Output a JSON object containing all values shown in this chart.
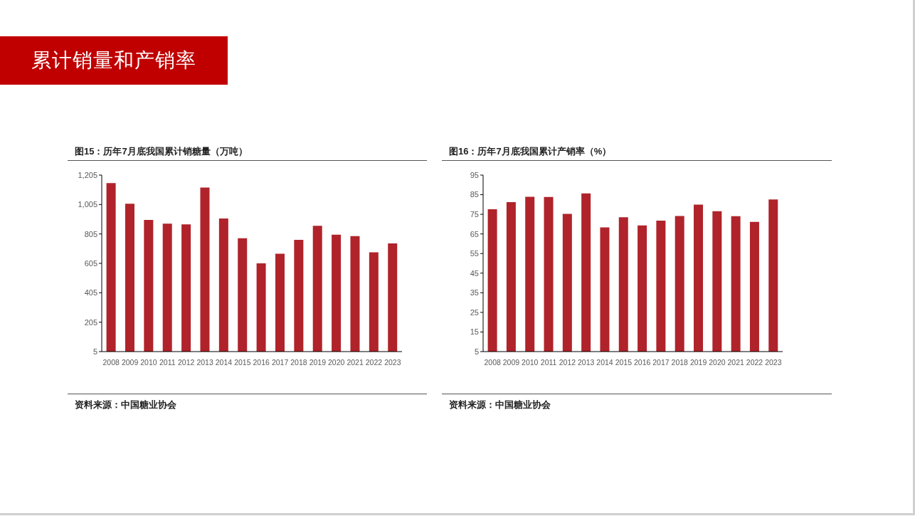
{
  "chart_data": [
    {
      "type": "other",
      "title": "累计销量和产销率"
    },
    {
      "type": "bar",
      "title": "图15：历年7月底我国累计销糖量（万吨）",
      "categories": [
        "2008",
        "2009",
        "2010",
        "2011",
        "2012",
        "2013",
        "2014",
        "2015",
        "2016",
        "2017",
        "2018",
        "2019",
        "2020",
        "2021",
        "2022",
        "2023"
      ],
      "values": [
        1150,
        1010,
        900,
        875,
        870,
        1120,
        910,
        775,
        605,
        670,
        765,
        860,
        800,
        790,
        680,
        740
      ],
      "color": "#b0232a",
      "ylim": [
        5,
        1205
      ],
      "yticks": [
        5,
        205,
        405,
        605,
        805,
        {
          "value": 1005,
          "label": "1,005"
        },
        {
          "value": 1205,
          "label": "1,205"
        }
      ],
      "annotations": [
        "资料来源：中国糖业协会"
      ]
    },
    {
      "type": "bar",
      "title": "图16：历年7月底我国累计产销率（%）",
      "categories": [
        "2008",
        "2009",
        "2010",
        "2011",
        "2012",
        "2013",
        "2014",
        "2015",
        "2016",
        "2017",
        "2018",
        "2019",
        "2020",
        "2021",
        "2022",
        "2023"
      ],
      "values": [
        77.6,
        81.2,
        83.9,
        83.8,
        75.2,
        85.7,
        68.3,
        73.5,
        69.3,
        71.8,
        74.1,
        79.9,
        76.6,
        74.0,
        71.1,
        82.6
      ],
      "color": "#b0232a",
      "ylim": [
        5,
        95
      ],
      "yticks": [
        5,
        15,
        25,
        35,
        45,
        55,
        65,
        75,
        85,
        95
      ],
      "annotations": [
        "资料来源：中国糖业协会"
      ]
    }
  ]
}
